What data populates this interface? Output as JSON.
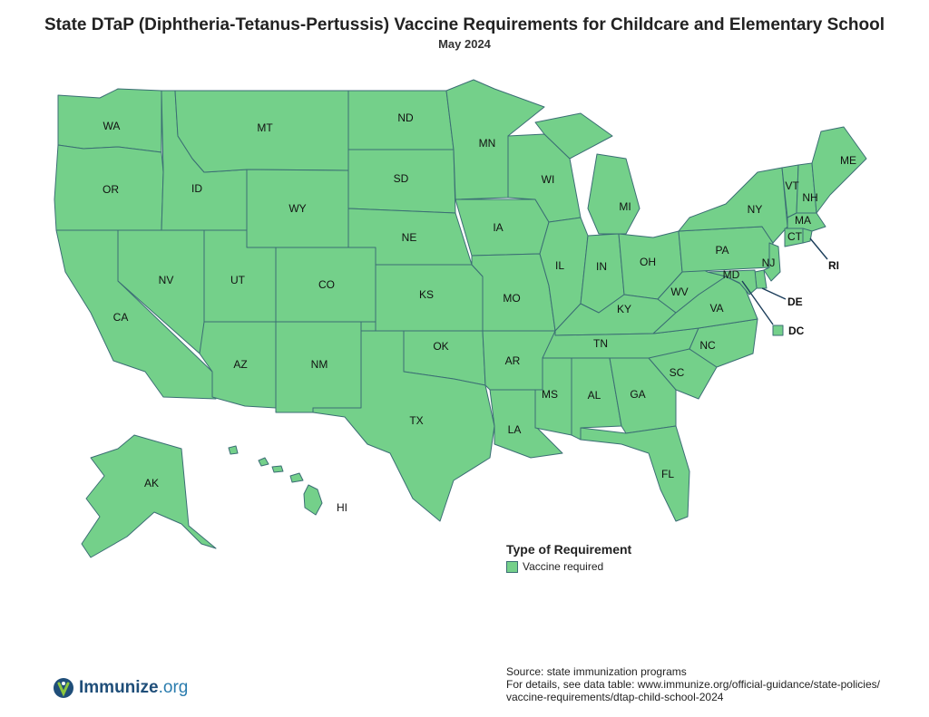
{
  "title": "State DTaP (Diphtheria-Tetanus-Pertussis) Vaccine Requirements for Childcare and Elementary School",
  "subtitle": "May 2024",
  "fill_color": "#74d08a",
  "border_color": "#3b6e74",
  "states": [
    {
      "abbr": "WA",
      "requirement": "Vaccine required"
    },
    {
      "abbr": "OR",
      "requirement": "Vaccine required"
    },
    {
      "abbr": "CA",
      "requirement": "Vaccine required"
    },
    {
      "abbr": "ID",
      "requirement": "Vaccine required"
    },
    {
      "abbr": "NV",
      "requirement": "Vaccine required"
    },
    {
      "abbr": "MT",
      "requirement": "Vaccine required"
    },
    {
      "abbr": "WY",
      "requirement": "Vaccine required"
    },
    {
      "abbr": "UT",
      "requirement": "Vaccine required"
    },
    {
      "abbr": "AZ",
      "requirement": "Vaccine required"
    },
    {
      "abbr": "CO",
      "requirement": "Vaccine required"
    },
    {
      "abbr": "NM",
      "requirement": "Vaccine required"
    },
    {
      "abbr": "ND",
      "requirement": "Vaccine required"
    },
    {
      "abbr": "SD",
      "requirement": "Vaccine required"
    },
    {
      "abbr": "NE",
      "requirement": "Vaccine required"
    },
    {
      "abbr": "KS",
      "requirement": "Vaccine required"
    },
    {
      "abbr": "OK",
      "requirement": "Vaccine required"
    },
    {
      "abbr": "TX",
      "requirement": "Vaccine required"
    },
    {
      "abbr": "MN",
      "requirement": "Vaccine required"
    },
    {
      "abbr": "IA",
      "requirement": "Vaccine required"
    },
    {
      "abbr": "MO",
      "requirement": "Vaccine required"
    },
    {
      "abbr": "AR",
      "requirement": "Vaccine required"
    },
    {
      "abbr": "LA",
      "requirement": "Vaccine required"
    },
    {
      "abbr": "WI",
      "requirement": "Vaccine required"
    },
    {
      "abbr": "IL",
      "requirement": "Vaccine required"
    },
    {
      "abbr": "MI",
      "requirement": "Vaccine required"
    },
    {
      "abbr": "IN",
      "requirement": "Vaccine required"
    },
    {
      "abbr": "OH",
      "requirement": "Vaccine required"
    },
    {
      "abbr": "KY",
      "requirement": "Vaccine required"
    },
    {
      "abbr": "TN",
      "requirement": "Vaccine required"
    },
    {
      "abbr": "MS",
      "requirement": "Vaccine required"
    },
    {
      "abbr": "AL",
      "requirement": "Vaccine required"
    },
    {
      "abbr": "GA",
      "requirement": "Vaccine required"
    },
    {
      "abbr": "FL",
      "requirement": "Vaccine required"
    },
    {
      "abbr": "SC",
      "requirement": "Vaccine required"
    },
    {
      "abbr": "NC",
      "requirement": "Vaccine required"
    },
    {
      "abbr": "VA",
      "requirement": "Vaccine required"
    },
    {
      "abbr": "WV",
      "requirement": "Vaccine required"
    },
    {
      "abbr": "PA",
      "requirement": "Vaccine required"
    },
    {
      "abbr": "NY",
      "requirement": "Vaccine required"
    },
    {
      "abbr": "VT",
      "requirement": "Vaccine required"
    },
    {
      "abbr": "NH",
      "requirement": "Vaccine required"
    },
    {
      "abbr": "ME",
      "requirement": "Vaccine required"
    },
    {
      "abbr": "MA",
      "requirement": "Vaccine required"
    },
    {
      "abbr": "CT",
      "requirement": "Vaccine required"
    },
    {
      "abbr": "RI",
      "requirement": "Vaccine required"
    },
    {
      "abbr": "NJ",
      "requirement": "Vaccine required"
    },
    {
      "abbr": "DE",
      "requirement": "Vaccine required"
    },
    {
      "abbr": "MD",
      "requirement": "Vaccine required"
    },
    {
      "abbr": "DC",
      "requirement": "Vaccine required"
    },
    {
      "abbr": "AK",
      "requirement": "Vaccine required"
    },
    {
      "abbr": "HI",
      "requirement": "Vaccine required"
    }
  ],
  "legend": {
    "title": "Type of Requirement",
    "items": [
      {
        "label": "Vaccine required",
        "color": "#74d08a"
      }
    ]
  },
  "source": {
    "line1": "Source: state immunization programs",
    "line2": "For details, see data table: www.immunize.org/official-guidance/state-policies/",
    "line3": "vaccine-requirements/dtap-child-school-2024"
  },
  "logo": {
    "name": "Immunize",
    "suffix": ".org",
    "icon": "immunize-logo-icon"
  }
}
